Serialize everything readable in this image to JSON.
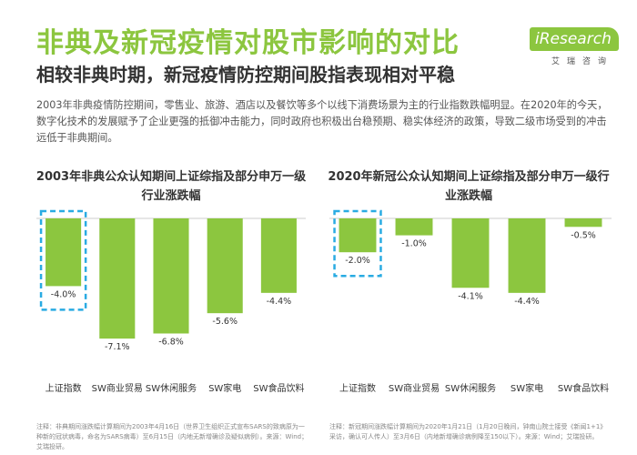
{
  "header": {
    "title": "非典及新冠疫情对股市影响的对比",
    "subtitle": "相较非典时期，新冠疫情防控期间股指表现相对平稳",
    "logo_text": "iResearch",
    "logo_cn": "艾瑞咨询"
  },
  "description": "2003年非典疫情防控期间，零售业、旅游、酒店以及餐饮等多个以线下消费场景为主的行业指数跌幅明显。在2020年的今天，数字化技术的发展赋予了企业更强的抵御冲击能力，同时政府也积极出台稳预期、稳实体经济的政策，导致二级市场受到的冲击远低于非典期间。",
  "colors": {
    "title_green": "#8cc63f",
    "bar_green": "#8cc63f",
    "highlight_dash": "#29abe2"
  },
  "chart_data": [
    {
      "type": "bar",
      "title": "2003年非典公众认知期间上证综指及部分申万一级行业涨跌幅",
      "categories": [
        "上证指数",
        "SW商业贸易",
        "SW休闲服务",
        "SW家电",
        "SW食品饮料"
      ],
      "values": [
        -4.0,
        -7.1,
        -6.8,
        -5.6,
        -4.4
      ],
      "value_labels": [
        "-4.0%",
        "-7.1%",
        "-6.8%",
        "-5.6%",
        "-4.4%"
      ],
      "highlight_index": 0,
      "ylim": [
        -8,
        0
      ],
      "grid": false,
      "note": "注释：非典期间涨跌幅计算期间为2003年4月16日（世界卫生组织正式宣布SARS的致病原为一种新的冠状病毒，命名为SARS病毒）至6月15日（内地无新增确诊及疑似病例）。来源：Wind；艾瑞投研。"
    },
    {
      "type": "bar",
      "title": "2020年新冠公众认知期间上证综指及部分申万一级行业涨跌幅",
      "categories": [
        "上证指数",
        "SW商业贸易",
        "SW休闲服务",
        "SW家电",
        "SW食品饮料"
      ],
      "values": [
        -2.0,
        -1.0,
        -4.1,
        -4.4,
        -0.5
      ],
      "value_labels": [
        "-2.0%",
        "-1.0%",
        "-4.1%",
        "-4.4%",
        "-0.5%"
      ],
      "highlight_index": 0,
      "ylim": [
        -8,
        0
      ],
      "grid": false,
      "note": "注释：新冠期间涨跌幅计算期间为2020年1月21日（1月20日晚间，钟南山院士接受《新闻1+1》采访，确认可人传人）至3月6日（内地新增确诊病例降至150以下）。来源：Wind；艾瑞投研。"
    }
  ]
}
